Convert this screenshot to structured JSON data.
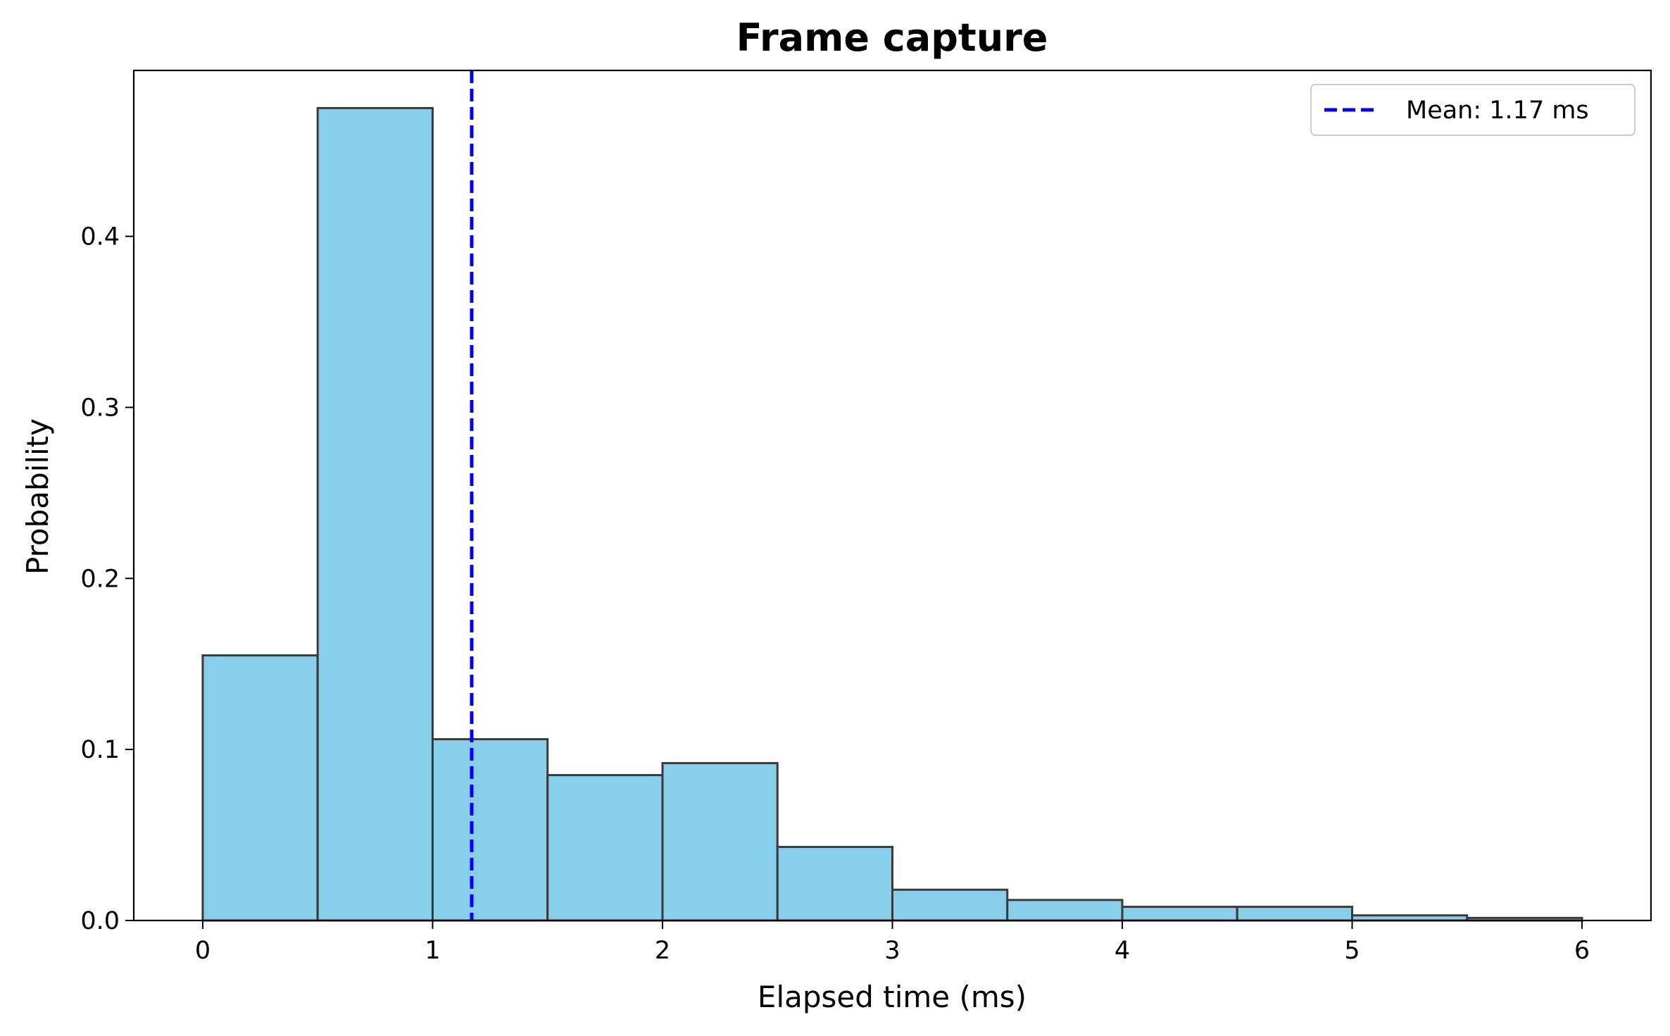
{
  "chart_data": {
    "type": "bar",
    "title": "Frame capture",
    "xlabel": "Elapsed time (ms)",
    "ylabel": "Probability",
    "xlim": [
      -0.3,
      6.3
    ],
    "ylim": [
      0,
      0.497
    ],
    "x_ticks": [
      0,
      1,
      2,
      3,
      4,
      5,
      6
    ],
    "x_tick_labels": [
      "0",
      "1",
      "2",
      "3",
      "4",
      "5",
      "6"
    ],
    "y_ticks": [
      0.0,
      0.1,
      0.2,
      0.3,
      0.4
    ],
    "y_tick_labels": [
      "0.0",
      "0.1",
      "0.2",
      "0.3",
      "0.4"
    ],
    "grid": false,
    "bin_width": 0.5,
    "bin_starts": [
      0,
      0.5,
      1.0,
      1.5,
      2.0,
      2.5,
      3.0,
      3.5,
      4.0,
      4.5,
      5.0,
      5.5
    ],
    "values": [
      0.155,
      0.475,
      0.106,
      0.085,
      0.092,
      0.043,
      0.018,
      0.012,
      0.008,
      0.008,
      0.003,
      0.0015
    ],
    "bar_color": "#87CEEB",
    "edge_color": "#3a3a3a",
    "mean": {
      "value": 1.17,
      "label": "Mean: 1.17 ms",
      "color": "#0000FF",
      "style": "dashed"
    },
    "legend": {
      "placement": "top-right",
      "entries": [
        "Mean: 1.17 ms"
      ]
    }
  }
}
